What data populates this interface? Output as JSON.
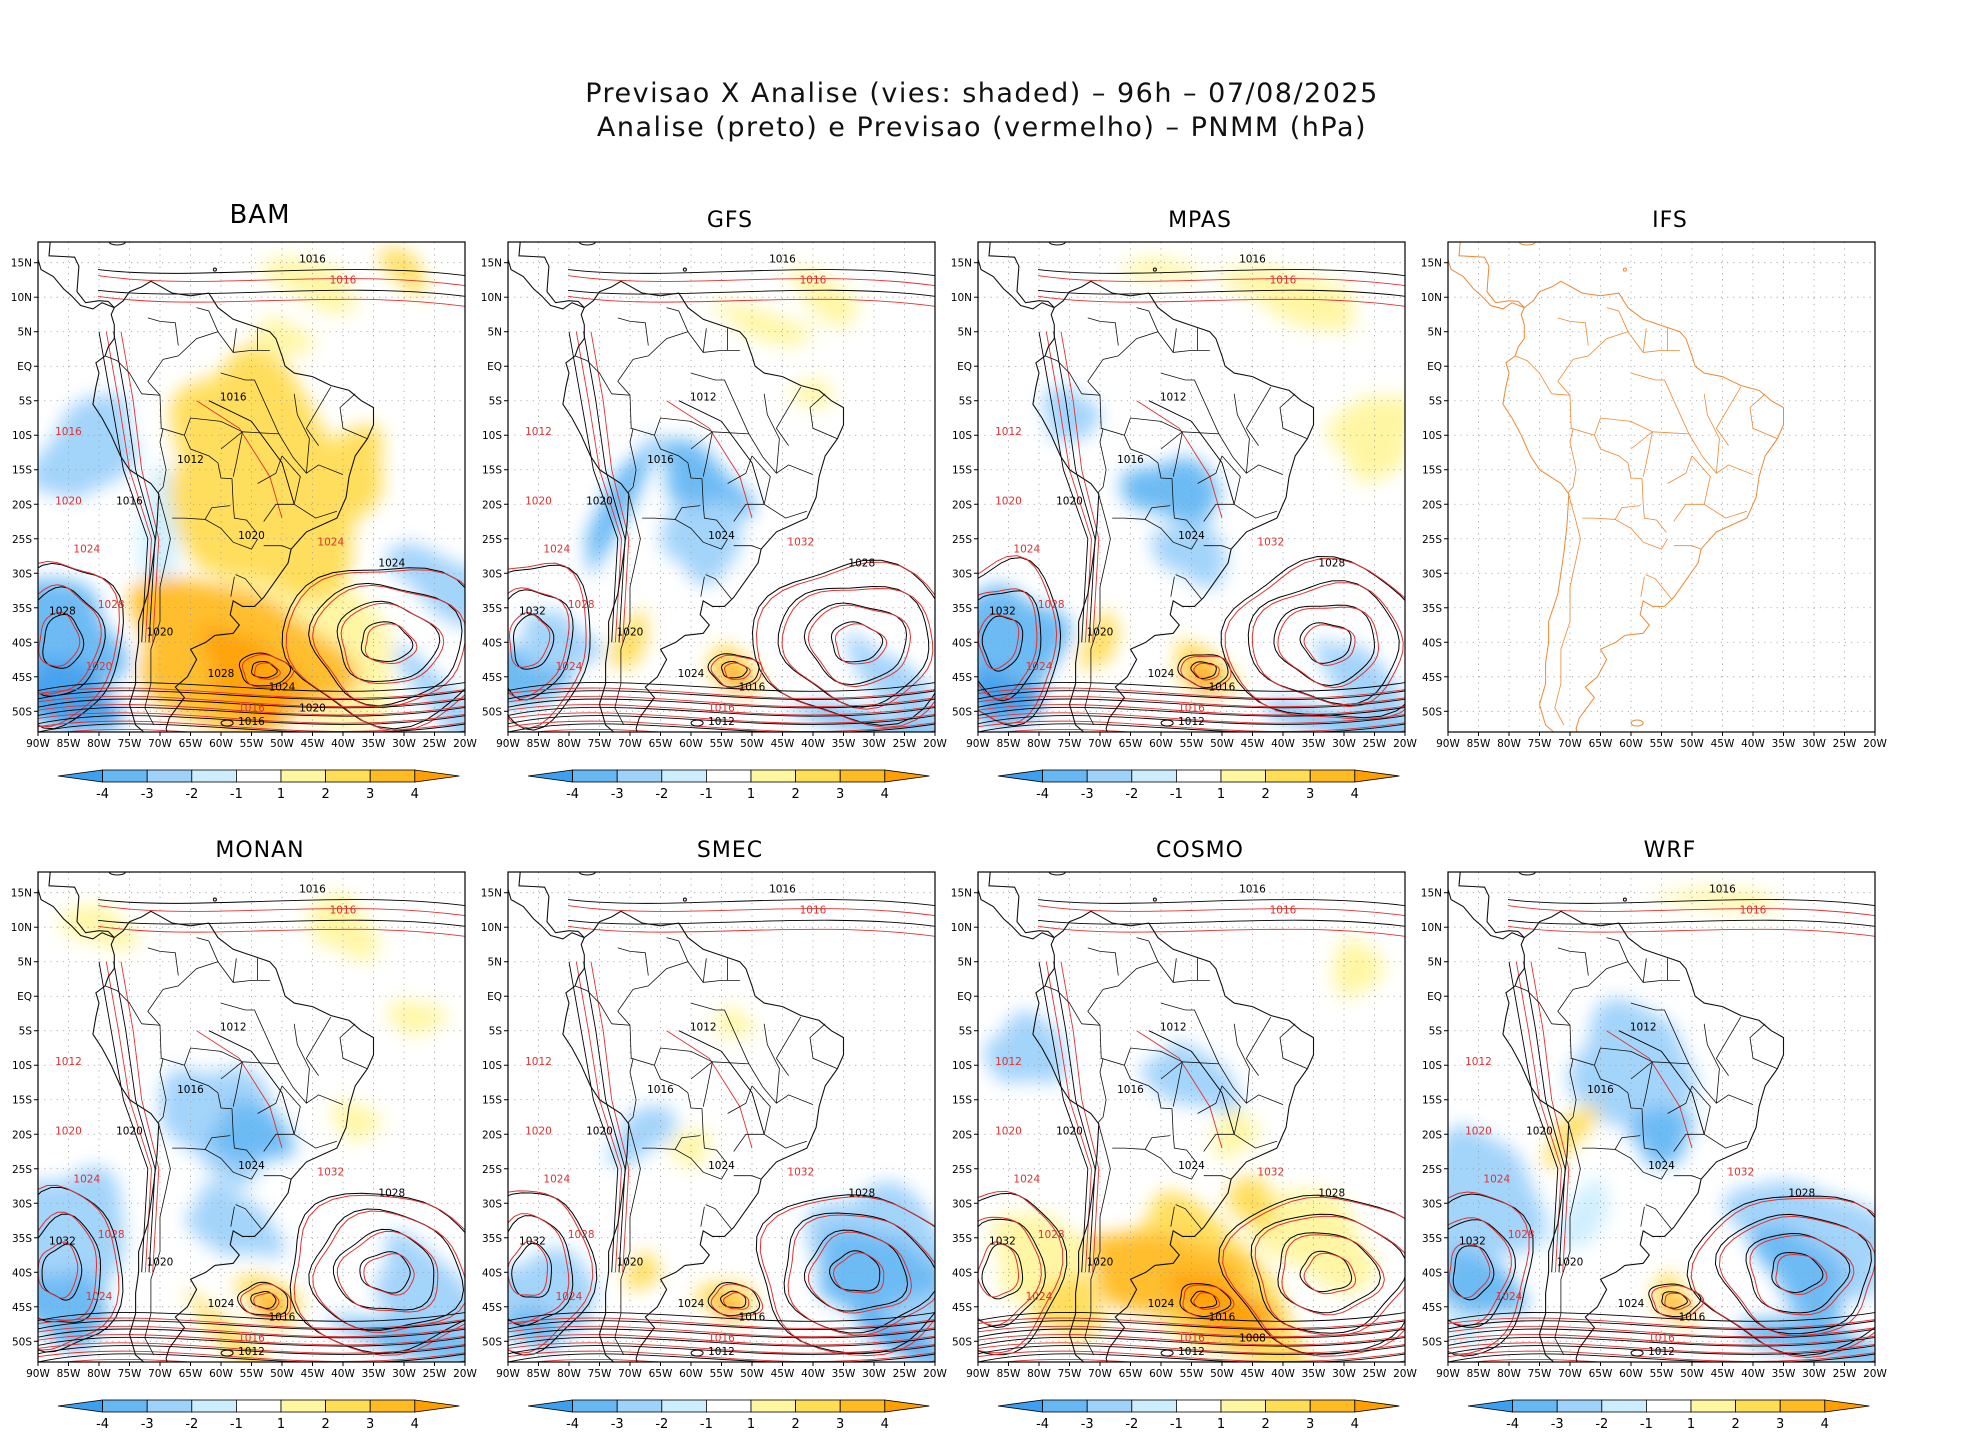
{
  "header": {
    "line1": "Previsao X Analise (vies: shaded) – 96h – 07/08/2025",
    "line2": "Analise (preto) e Previsao (vermelho) – PNMM (hPa)"
  },
  "axes": {
    "lat_labels": [
      "15N",
      "10N",
      "5N",
      "EQ",
      "5S",
      "10S",
      "15S",
      "20S",
      "25S",
      "30S",
      "35S",
      "40S",
      "45S",
      "50S"
    ],
    "lon_labels": [
      "90W",
      "85W",
      "80W",
      "75W",
      "70W",
      "65W",
      "60W",
      "55W",
      "50W",
      "45W",
      "40W",
      "35W",
      "30W",
      "25W",
      "20W"
    ]
  },
  "colorbar": {
    "labels": [
      "-4",
      "-3",
      "-2",
      "-1",
      "1",
      "2",
      "3",
      "4"
    ],
    "colors": [
      "#3c9ff0",
      "#66b8f4",
      "#9fd2fa",
      "#cdeefe",
      "#ffffff",
      "#fff6a0",
      "#ffdd55",
      "#ffbb22",
      "#ffa000"
    ]
  },
  "colors": {
    "analysis": "#000000",
    "forecast": "#e03030",
    "coast": "#111111",
    "ifs_map": "#ee8833"
  },
  "panels": [
    {
      "name": "BAM",
      "has_data": true,
      "labels_black": [
        "1016",
        "1016",
        "1012",
        "1016",
        "1020",
        "1024",
        "1028",
        "1020",
        "1028",
        "1024",
        "1016",
        "1020"
      ],
      "labels_red": [
        "1016",
        "1016",
        "1020",
        "1024",
        "1028",
        "1024",
        "1020",
        "1016"
      ]
    },
    {
      "name": "GFS",
      "has_data": true,
      "labels_black": [
        "1016",
        "1012",
        "1016",
        "1020",
        "1024",
        "1028",
        "1032",
        "1020",
        "1024",
        "1016",
        "1012"
      ],
      "labels_red": [
        "1016",
        "1012",
        "1020",
        "1024",
        "1028",
        "1032",
        "1024",
        "1016"
      ]
    },
    {
      "name": "MPAS",
      "has_data": true,
      "labels_black": [
        "1016",
        "1012",
        "1016",
        "1020",
        "1024",
        "1028",
        "1032",
        "1020",
        "1024",
        "1016",
        "1012"
      ],
      "labels_red": [
        "1016",
        "1012",
        "1020",
        "1024",
        "1028",
        "1032",
        "1024",
        "1016"
      ]
    },
    {
      "name": "IFS",
      "has_data": false,
      "labels_black": [],
      "labels_red": []
    },
    {
      "name": "MONAN",
      "has_data": true,
      "labels_black": [
        "1016",
        "1012",
        "1016",
        "1020",
        "1024",
        "1028",
        "1032",
        "1020",
        "1024",
        "1016",
        "1012"
      ],
      "labels_red": [
        "1016",
        "1012",
        "1020",
        "1024",
        "1028",
        "1032",
        "1024",
        "1016"
      ]
    },
    {
      "name": "SMEC",
      "has_data": true,
      "labels_black": [
        "1016",
        "1012",
        "1016",
        "1020",
        "1024",
        "1028",
        "1032",
        "1020",
        "1024",
        "1016",
        "1012"
      ],
      "labels_red": [
        "1016",
        "1012",
        "1020",
        "1024",
        "1028",
        "1032",
        "1024",
        "1016"
      ]
    },
    {
      "name": "COSMO",
      "has_data": true,
      "labels_black": [
        "1016",
        "1012",
        "1016",
        "1020",
        "1024",
        "1028",
        "1032",
        "1020",
        "1024",
        "1016",
        "1012",
        "1008"
      ],
      "labels_red": [
        "1016",
        "1012",
        "1020",
        "1024",
        "1028",
        "1032",
        "1024",
        "1016"
      ]
    },
    {
      "name": "WRF",
      "has_data": true,
      "labels_black": [
        "1016",
        "1012",
        "1016",
        "1020",
        "1024",
        "1028",
        "1032",
        "1020",
        "1024",
        "1016",
        "1012"
      ],
      "labels_red": [
        "1016",
        "1012",
        "1020",
        "1024",
        "1028",
        "1032",
        "1024",
        "1016"
      ]
    }
  ]
}
